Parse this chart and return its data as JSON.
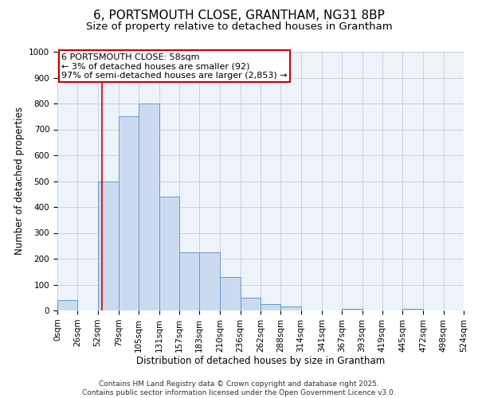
{
  "title": "6, PORTSMOUTH CLOSE, GRANTHAM, NG31 8BP",
  "subtitle": "Size of property relative to detached houses in Grantham",
  "xlabel": "Distribution of detached houses by size in Grantham",
  "ylabel": "Number of detached properties",
  "bar_color": "#ccdaf0",
  "bar_edge_color": "#6699cc",
  "background_color": "#ffffff",
  "plot_bg_color": "#eef2f9",
  "grid_color": "#c5cdd8",
  "annotation_line_color": "#cc0000",
  "property_size": 58,
  "bin_edges": [
    0,
    26,
    52,
    79,
    105,
    131,
    157,
    183,
    210,
    236,
    262,
    288,
    314,
    341,
    367,
    393,
    419,
    445,
    472,
    498,
    524
  ],
  "bar_heights": [
    40,
    0,
    500,
    750,
    800,
    440,
    225,
    225,
    130,
    50,
    25,
    15,
    0,
    0,
    5,
    0,
    0,
    5,
    0,
    0
  ],
  "ylim": [
    0,
    1000
  ],
  "yticks": [
    0,
    100,
    200,
    300,
    400,
    500,
    600,
    700,
    800,
    900,
    1000
  ],
  "tick_labels": [
    "0sqm",
    "26sqm",
    "52sqm",
    "79sqm",
    "105sqm",
    "131sqm",
    "157sqm",
    "183sqm",
    "210sqm",
    "236sqm",
    "262sqm",
    "288sqm",
    "314sqm",
    "341sqm",
    "367sqm",
    "393sqm",
    "419sqm",
    "445sqm",
    "472sqm",
    "498sqm",
    "524sqm"
  ],
  "annotation_text_line1": "6 PORTSMOUTH CLOSE: 58sqm",
  "annotation_text_line2": "← 3% of detached houses are smaller (92)",
  "annotation_text_line3": "97% of semi-detached houses are larger (2,853) →",
  "footer_line1": "Contains HM Land Registry data © Crown copyright and database right 2025.",
  "footer_line2": "Contains public sector information licensed under the Open Government Licence v3.0.",
  "title_fontsize": 11,
  "subtitle_fontsize": 9.5,
  "axis_label_fontsize": 8.5,
  "tick_fontsize": 7.5,
  "annotation_fontsize": 8,
  "footer_fontsize": 6.5
}
